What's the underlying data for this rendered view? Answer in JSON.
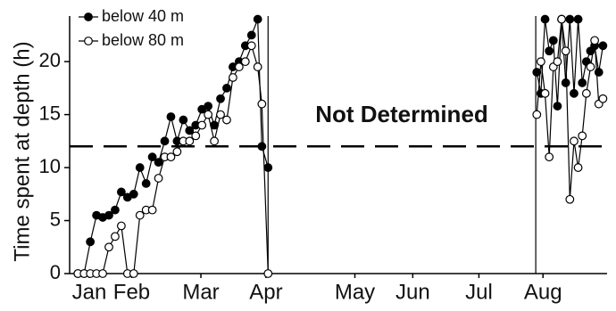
{
  "chart_data": {
    "type": "line",
    "y_label": "Time spent at depth (h)",
    "annotation": "Not Determined",
    "x": [
      14,
      17,
      20,
      23,
      26,
      29,
      32,
      35,
      38,
      41,
      44,
      47,
      50,
      53,
      56,
      59,
      62,
      65,
      68,
      71,
      74,
      77,
      80,
      83,
      86,
      89,
      92,
      95,
      98,
      101,
      103,
      106,
      236,
      238,
      240,
      242,
      244,
      246,
      248,
      250,
      252,
      254,
      256,
      258,
      260,
      262,
      264,
      266,
      268
    ],
    "series": [
      {
        "name": "below 40 m",
        "color": "#000000",
        "marker": "filled",
        "values": [
          0,
          0,
          3,
          5.5,
          5.3,
          5.5,
          6,
          7.7,
          7.2,
          7.5,
          10,
          8.5,
          11,
          10.5,
          12.5,
          14.8,
          12.5,
          14.5,
          13.5,
          14,
          15.5,
          15.8,
          14,
          16.5,
          17.5,
          19.5,
          20,
          21.5,
          22.5,
          24,
          12,
          10,
          19,
          17,
          24,
          21,
          22,
          15.8,
          24,
          18,
          24,
          17,
          24,
          18,
          20,
          21,
          21.5,
          19,
          21.5
        ]
      },
      {
        "name": "below 80 m",
        "color": "#000000",
        "marker": "open",
        "values": [
          0,
          0,
          0,
          0,
          0,
          2.5,
          3.5,
          4.5,
          0,
          0,
          5.5,
          6,
          6,
          9,
          11,
          11,
          11.5,
          12.5,
          12.5,
          13,
          14,
          15,
          12.5,
          15,
          14.5,
          18.5,
          19.5,
          20,
          21.5,
          19.5,
          16,
          0,
          15,
          20,
          17,
          11,
          19.5,
          20,
          24,
          21,
          7,
          12.5,
          10,
          13,
          17,
          19.5,
          22,
          16,
          16.5
        ]
      }
    ],
    "xlim": [
      10,
      270
    ],
    "xticks": [
      {
        "value": 19.5,
        "label": "Jan"
      },
      {
        "value": 40,
        "label": "Feb"
      },
      {
        "value": 73.5,
        "label": "Mar"
      },
      {
        "value": 105,
        "label": "Apr"
      },
      {
        "value": 148,
        "label": "May"
      },
      {
        "value": 176,
        "label": "Jun"
      },
      {
        "value": 208,
        "label": "Jul"
      },
      {
        "value": 239,
        "label": "Aug"
      }
    ],
    "ylim": [
      0,
      24.3
    ],
    "yticks": [
      0,
      5,
      10,
      15,
      20
    ],
    "vlines": [
      106,
      235.5
    ],
    "hline": 12,
    "legend": "top-left",
    "grid": false
  }
}
